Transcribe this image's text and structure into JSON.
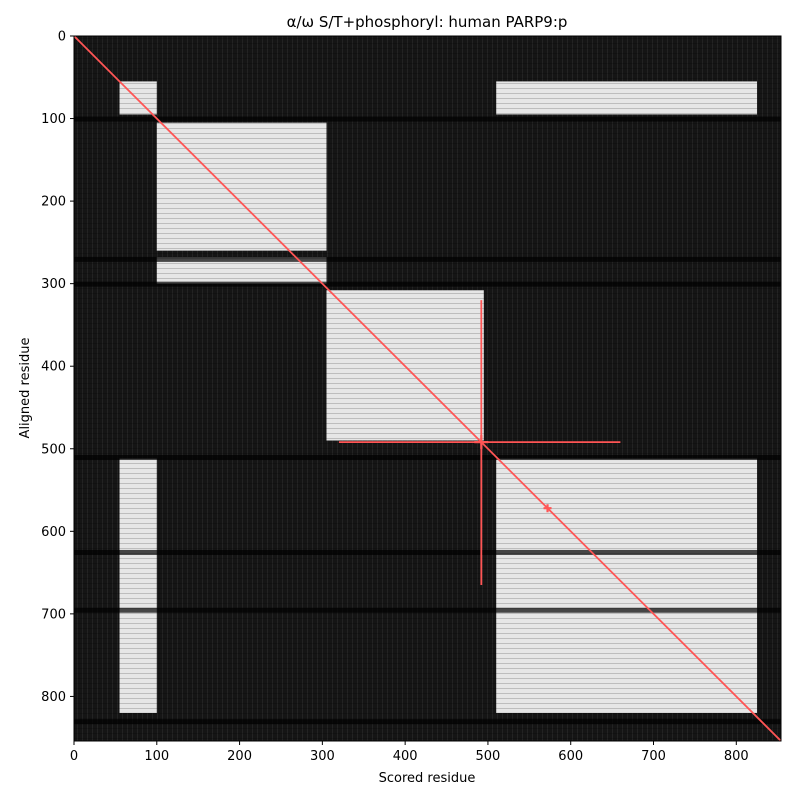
{
  "chart_data": {
    "type": "heatmap",
    "title": "α/ω S/T+phosphoryl: human PARP9:p",
    "xlabel": "Scored residue",
    "ylabel": "Aligned residue",
    "xlim": [
      0,
      854
    ],
    "ylim": [
      854,
      0
    ],
    "x_ticks": [
      0,
      100,
      200,
      300,
      400,
      500,
      600,
      700,
      800
    ],
    "y_ticks": [
      0,
      100,
      200,
      300,
      400,
      500,
      600,
      700,
      800
    ],
    "colormap": "gray",
    "background_value": "black",
    "bright_blocks": [
      {
        "x": [
          55,
          100
        ],
        "y": [
          55,
          95
        ]
      },
      {
        "x": [
          100,
          305
        ],
        "y": [
          105,
          260
        ]
      },
      {
        "x": [
          100,
          305
        ],
        "y": [
          268,
          300
        ]
      },
      {
        "x": [
          305,
          495
        ],
        "y": [
          308,
          490
        ]
      },
      {
        "x": [
          510,
          825
        ],
        "y": [
          55,
          95
        ]
      },
      {
        "x": [
          55,
          100
        ],
        "y": [
          512,
          820
        ]
      },
      {
        "x": [
          510,
          825
        ],
        "y": [
          512,
          820
        ]
      }
    ],
    "dark_rows": [
      100,
      270,
      300,
      510,
      625,
      695,
      830
    ],
    "diagonal": {
      "from": [
        0,
        0
      ],
      "to": [
        854,
        854
      ],
      "color": "#ff5555"
    },
    "markers": [
      {
        "x": 492,
        "y": 492,
        "x_range": [
          320,
          660
        ],
        "y_range": [
          320,
          665
        ],
        "color": "#ff5555"
      },
      {
        "x": 572,
        "y": 572,
        "color": "#ff5555"
      }
    ]
  }
}
